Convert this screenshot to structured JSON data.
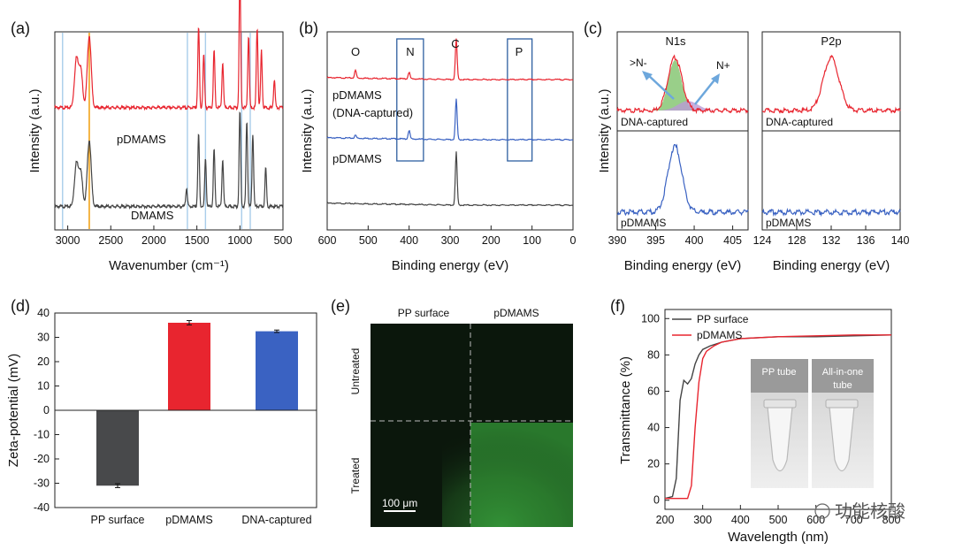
{
  "figure": {
    "panel_labels": [
      "(a)",
      "(b)",
      "(c)",
      "(d)",
      "(e)",
      "(f)"
    ],
    "watermark": "功能核酸",
    "colors": {
      "red": "#e8252f",
      "blue": "#3a62c2",
      "gray": "#444444",
      "orange": "#f1a31a",
      "lightblue": "#a9cdea"
    }
  },
  "chart_data": [
    {
      "id": "a",
      "type": "line",
      "xlabel": "Wavenumber (cm⁻¹)",
      "ylabel": "Intensity (a.u.)",
      "xlim": [
        3150,
        500
      ],
      "xticks": [
        3000,
        2500,
        2000,
        1500,
        1000,
        500
      ],
      "xtick_labels": [
        "3000",
        "2500",
        "2000",
        "1500",
        "1000",
        "500"
      ],
      "vlines_blue": [
        3060,
        1610,
        1400,
        980,
        880
      ],
      "vline_orange": 2750,
      "series": [
        {
          "name": "pDMAMS",
          "color": "red",
          "baseline": 0.62,
          "peaks": [
            [
              2900,
              0.25
            ],
            [
              2850,
              0.2
            ],
            [
              2750,
              0.38
            ],
            [
              1480,
              0.42
            ],
            [
              1420,
              0.28
            ],
            [
              1300,
              0.3
            ],
            [
              1200,
              0.24
            ],
            [
              1000,
              0.7
            ],
            [
              900,
              0.38
            ],
            [
              800,
              0.42
            ],
            [
              750,
              0.3
            ],
            [
              600,
              0.15
            ]
          ]
        },
        {
          "name": "DMAMS",
          "color": "gray",
          "baseline": 0.1,
          "peaks": [
            [
              2900,
              0.22
            ],
            [
              2850,
              0.18
            ],
            [
              2750,
              0.35
            ],
            [
              1620,
              0.1
            ],
            [
              1480,
              0.38
            ],
            [
              1400,
              0.25
            ],
            [
              1300,
              0.3
            ],
            [
              1200,
              0.25
            ],
            [
              1000,
              0.5
            ],
            [
              920,
              0.45
            ],
            [
              850,
              0.38
            ],
            [
              700,
              0.2
            ]
          ]
        }
      ],
      "labels": [
        "pDMAMS",
        "DMAMS"
      ]
    },
    {
      "id": "b",
      "type": "line",
      "xlabel": "Binding energy (eV)",
      "ylabel": "Intensity (a.u.)",
      "xlim": [
        600,
        0
      ],
      "xticks": [
        600,
        500,
        400,
        300,
        200,
        100,
        0
      ],
      "xtick_labels": [
        "600",
        "500",
        "400",
        "300",
        "200",
        "100",
        "0"
      ],
      "element_labels": [
        "O",
        "N",
        "C",
        "P"
      ],
      "element_positions": [
        530,
        400,
        285,
        135
      ],
      "boxes": [
        {
          "label": "N",
          "range": [
            430,
            365
          ]
        },
        {
          "label": "P",
          "range": [
            160,
            100
          ]
        }
      ],
      "series": [
        {
          "name": "pDMAMS (DNA-captured)",
          "color": "red",
          "peaks": [
            [
              531,
              0.08
            ],
            [
              400,
              0.07
            ],
            [
              285,
              0.42
            ]
          ]
        },
        {
          "name": "pDMAMS",
          "color": "blue",
          "peaks": [
            [
              531,
              0.03
            ],
            [
              400,
              0.09
            ],
            [
              285,
              0.42
            ]
          ]
        },
        {
          "name": "",
          "color": "gray",
          "peaks": [
            [
              285,
              0.55
            ]
          ]
        }
      ],
      "labels": [
        "pDMAMS",
        "(DNA-captured)",
        "pDMAMS"
      ]
    },
    {
      "id": "c",
      "type": "line",
      "ylabel": "Intensity (a.u.)",
      "subplots": [
        {
          "title": "N1s",
          "xlabel": "Binding energy (eV)",
          "xlim": [
            390,
            407
          ],
          "xticks": [
            390,
            395,
            400,
            405
          ],
          "xtick_labels": [
            "390",
            "395",
            "400",
            "405"
          ],
          "top": {
            "label": "DNA-captured",
            "color": "red",
            "peak_center": 397.5,
            "annotations": [
              ">N-",
              "N+"
            ]
          },
          "bottom": {
            "label": "pDMAMS",
            "color": "blue",
            "peak_center": 397.5
          }
        },
        {
          "title": "P2p",
          "xlabel": "Binding energy (eV)",
          "xlim": [
            124,
            140
          ],
          "xticks": [
            124,
            128,
            132,
            136,
            140
          ],
          "xtick_labels": [
            "124",
            "128",
            "132",
            "136",
            "140"
          ],
          "top": {
            "label": "DNA-captured",
            "color": "red",
            "peak_center": 132
          },
          "bottom": {
            "label": "pDMAMS",
            "color": "blue",
            "peak_center": null
          }
        }
      ]
    },
    {
      "id": "d",
      "type": "bar",
      "ylabel": "Zeta-potential (mV)",
      "ylim": [
        -40,
        40
      ],
      "yticks": [
        -40,
        -30,
        -20,
        -10,
        0,
        10,
        20,
        30,
        40
      ],
      "ytick_labels": [
        "-40",
        "-30",
        "-20",
        "-10",
        "0",
        "10",
        "20",
        "30",
        "40"
      ],
      "categories": [
        "PP surface",
        "pDMAMS",
        "DNA-captured"
      ],
      "values": [
        -31,
        36,
        32.5
      ],
      "errors": [
        0.8,
        0.9,
        0.5
      ],
      "bar_colors": [
        "gray",
        "red",
        "blue"
      ]
    },
    {
      "id": "f",
      "type": "line",
      "xlabel": "Wavelength (nm)",
      "ylabel": "Transmittance (%)",
      "xlim": [
        200,
        800
      ],
      "ylim": [
        -5,
        105
      ],
      "xticks": [
        200,
        300,
        400,
        500,
        600,
        700,
        800
      ],
      "xtick_labels": [
        "200",
        "300",
        "400",
        "500",
        "600",
        "700",
        "800"
      ],
      "yticks": [
        0,
        20,
        40,
        60,
        80,
        100
      ],
      "ytick_labels": [
        "0",
        "20",
        "40",
        "60",
        "80",
        "100"
      ],
      "series": [
        {
          "name": "PP surface",
          "color": "gray",
          "x": [
            200,
            220,
            230,
            240,
            250,
            260,
            270,
            280,
            290,
            300,
            320,
            350,
            400,
            500,
            600,
            700,
            800
          ],
          "y": [
            1,
            2,
            12,
            55,
            66,
            64,
            67,
            75,
            80,
            83,
            85,
            87,
            89,
            90,
            90,
            90.5,
            91
          ]
        },
        {
          "name": "pDMAMS",
          "color": "red",
          "x": [
            200,
            230,
            260,
            270,
            280,
            290,
            300,
            310,
            330,
            350,
            400,
            500,
            600,
            700,
            800
          ],
          "y": [
            1,
            1,
            1,
            8,
            40,
            65,
            78,
            82,
            85,
            87,
            89,
            90,
            90.5,
            91,
            91
          ]
        }
      ],
      "legend": [
        "PP surface",
        "pDMAMS"
      ],
      "inset_labels": [
        "PP tube",
        "All-in-one",
        "tube"
      ]
    }
  ],
  "panel_e": {
    "columns": [
      "PP surface",
      "pDMAMS"
    ],
    "rows": [
      "Untreated",
      "Treated"
    ],
    "scalebar": "100 μm"
  }
}
